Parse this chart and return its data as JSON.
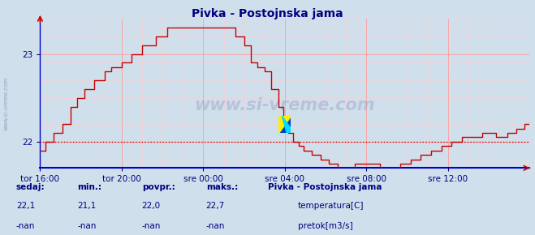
{
  "title": "Pivka - Postojnska jama",
  "bg_color": "#cfe0ec",
  "plot_bg_color": "#cfe0ec",
  "footer_bg": "#e8f0f8",
  "line_color": "#cc0000",
  "avg_line_color": "#cc0000",
  "avg_value": 22.0,
  "y_min": 21.7,
  "y_max": 23.38,
  "yticks": [
    22,
    23
  ],
  "xtick_labels": [
    "tor 16:00",
    "tor 20:00",
    "sre 00:00",
    "sre 04:00",
    "sre 08:00",
    "sre 12:00"
  ],
  "watermark": "www.si-vreme.com",
  "footer_label1": "sedaj:",
  "footer_label2": "min.:",
  "footer_label3": "povpr.:",
  "footer_label4": "maks.:",
  "footer_val1": "22,1",
  "footer_val2": "21,1",
  "footer_val3": "22,0",
  "footer_val4": "22,7",
  "footer_nan1": "-nan",
  "footer_nan2": "-nan",
  "footer_nan3": "-nan",
  "footer_nan4": "-nan",
  "legend_title": "Pivka - Postojnska jama",
  "legend_item1": "temperatura[C]",
  "legend_item2": "pretok[m3/s]",
  "legend_color1": "#cc0000",
  "legend_color2": "#00cc00",
  "sidebar_text": "www.si-vreme.com",
  "num_points": 289,
  "grid_color": "#ff9999",
  "grid_minor_color": "#ffcccc",
  "spine_color": "#0000cc",
  "tick_color": "#000080",
  "title_color": "#000080",
  "footer_text_color": "#000080"
}
